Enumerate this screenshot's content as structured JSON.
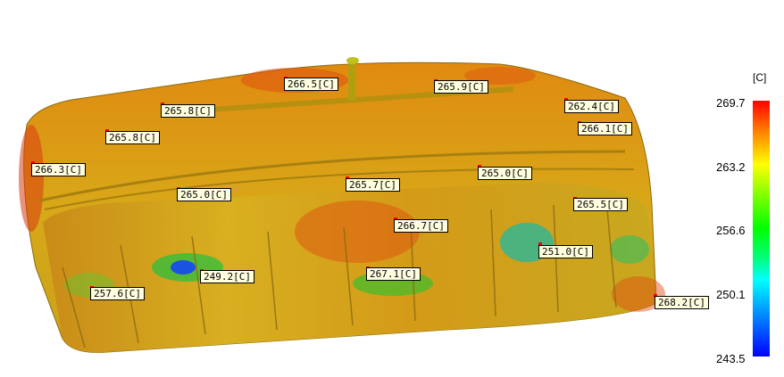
{
  "legend": {
    "unit": "[C]",
    "ticks": [
      "269.7",
      "263.2",
      "256.6",
      "250.1",
      "243.5"
    ],
    "max": 269.7,
    "min": 243.5
  },
  "probes": [
    {
      "id": "p1",
      "label": "266.5[C]"
    },
    {
      "id": "p2",
      "label": "265.9[C]"
    },
    {
      "id": "p3",
      "label": "262.4[C]"
    },
    {
      "id": "p4",
      "label": "265.8[C]"
    },
    {
      "id": "p5",
      "label": "266.1[C]"
    },
    {
      "id": "p6",
      "label": "265.8[C]"
    },
    {
      "id": "p7",
      "label": "266.3[C]"
    },
    {
      "id": "p8",
      "label": "265.0[C]"
    },
    {
      "id": "p9",
      "label": "265.7[C]"
    },
    {
      "id": "p10",
      "label": "265.0[C]"
    },
    {
      "id": "p11",
      "label": "265.5[C]"
    },
    {
      "id": "p12",
      "label": "266.7[C]"
    },
    {
      "id": "p13",
      "label": "251.0[C]"
    },
    {
      "id": "p14",
      "label": "249.2[C]"
    },
    {
      "id": "p15",
      "label": "267.1[C]"
    },
    {
      "id": "p16",
      "label": "257.6[C]"
    },
    {
      "id": "p17",
      "label": "268.2[C]"
    }
  ]
}
